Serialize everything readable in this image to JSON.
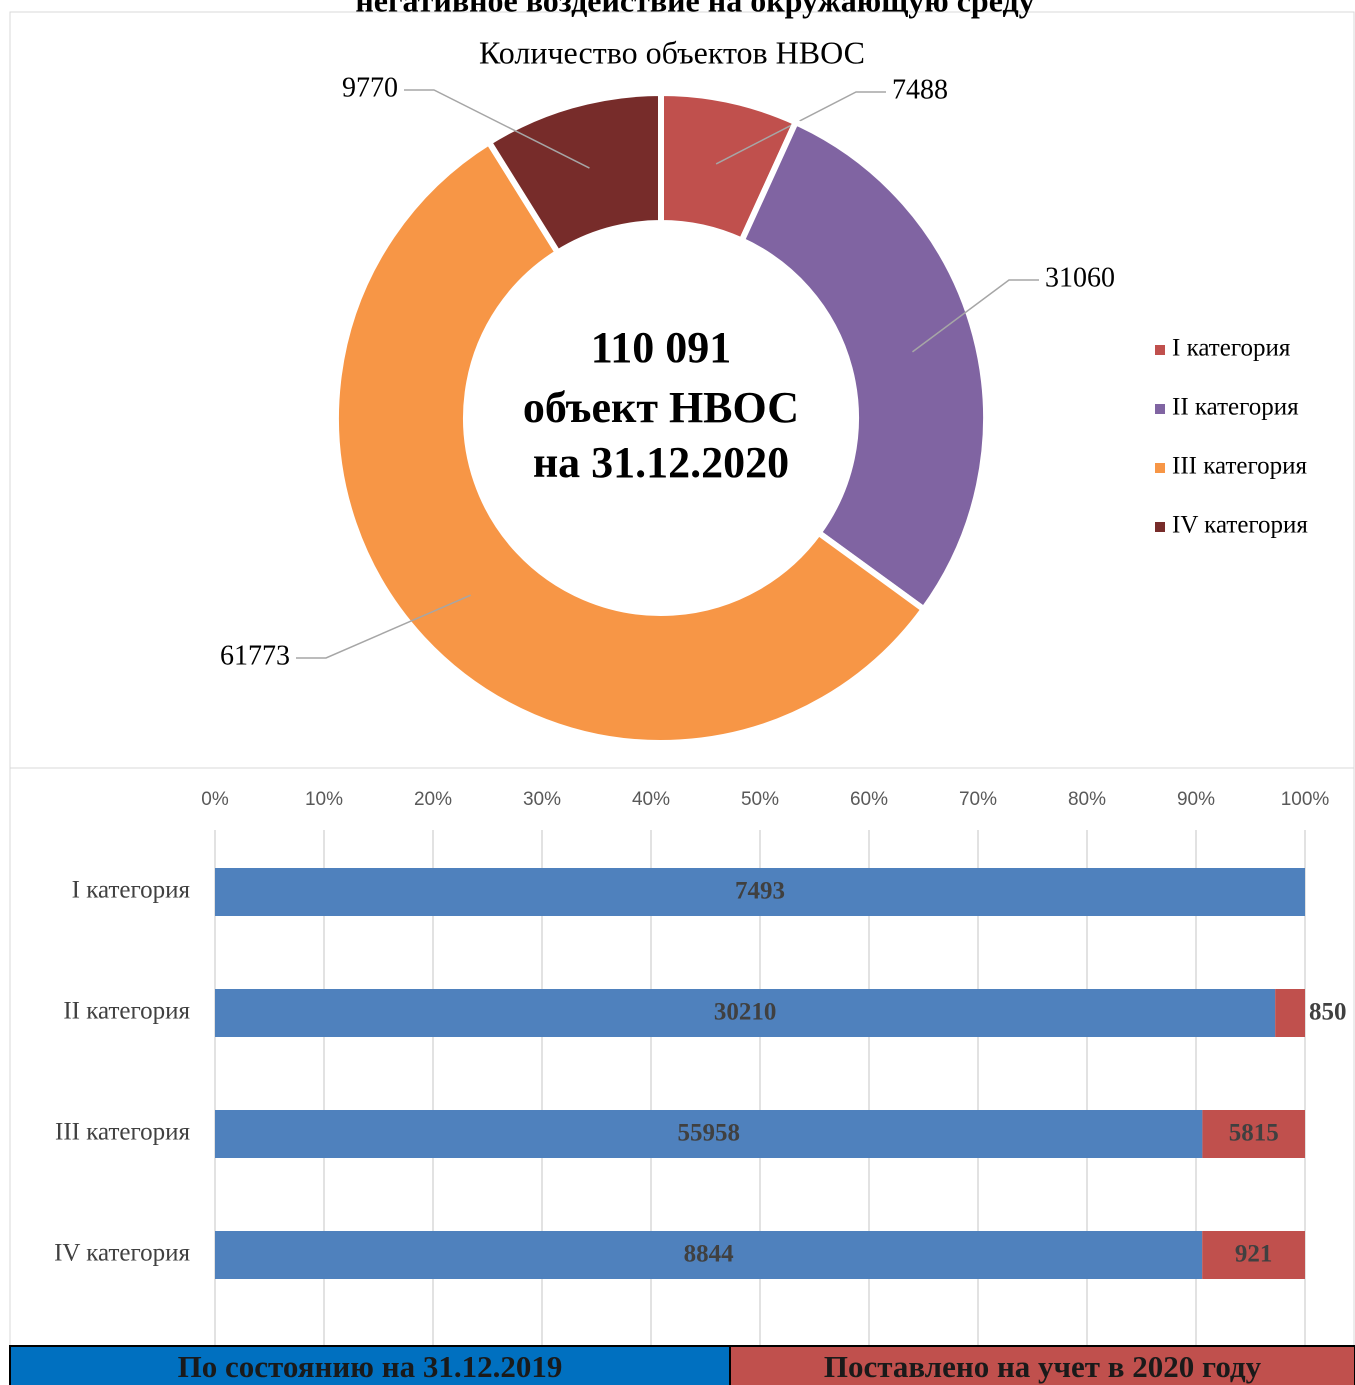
{
  "header": {
    "title": "негативное воздействие на окружающую среду"
  },
  "chart_data": [
    {
      "type": "donut",
      "title": "Количество объектов НВОС",
      "annotations": [
        "110 091",
        "объект НВОС",
        "на 31.12.2020"
      ],
      "categories": [
        "I категория",
        "II категория",
        "III категория",
        "IV категория"
      ],
      "values": [
        7488,
        31060,
        61773,
        9770
      ],
      "colors": [
        "#c0504d",
        "#8064a2",
        "#f79646",
        "#772c2a"
      ],
      "legend": "right"
    },
    {
      "type": "stacked_percent_barh",
      "categories": [
        "I категория",
        "II категория",
        "III категория",
        "IV категория"
      ],
      "series": [
        {
          "name": "По состоянию на 31.12.2019",
          "color": "#4f81bd",
          "values": [
            7493,
            30210,
            55958,
            8844
          ]
        },
        {
          "name": "Поставлено на учет в 2020 году",
          "color": "#c0504d",
          "values": [
            null,
            850,
            5815,
            921
          ]
        }
      ],
      "xlim": [
        0,
        100
      ],
      "xticks": [
        {
          "value": 0,
          "label": "0%"
        },
        {
          "value": 10,
          "label": "10%"
        },
        {
          "value": 20,
          "label": "20%"
        },
        {
          "value": 30,
          "label": "30%"
        },
        {
          "value": 40,
          "label": "40%"
        },
        {
          "value": 50,
          "label": "50%"
        },
        {
          "value": 60,
          "label": "60%"
        },
        {
          "value": 70,
          "label": "70%"
        },
        {
          "value": 80,
          "label": "80%"
        },
        {
          "value": 90,
          "label": "90%"
        },
        {
          "value": 100,
          "label": "100%"
        }
      ],
      "grid": true,
      "legend": "bottom"
    }
  ]
}
